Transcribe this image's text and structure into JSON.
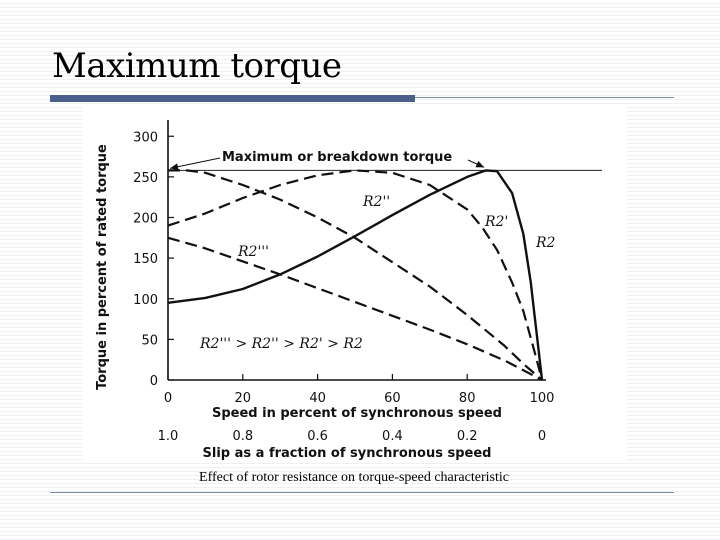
{
  "slide": {
    "title": "Maximum torque",
    "caption": "Effect of rotor resistance on torque-speed characteristic"
  },
  "chart_data": {
    "type": "line",
    "ylabel": "Torque in percent of rated torque",
    "xlabel": "Speed in percent of synchronous speed",
    "x2label": "Slip as a fraction of synchronous speed",
    "xlim": [
      0,
      100
    ],
    "ylim": [
      0,
      320
    ],
    "x_ticks": [
      "0",
      "20",
      "40",
      "60",
      "80",
      "100"
    ],
    "x2_ticks": [
      "1.0",
      "0.8",
      "0.6",
      "0.4",
      "0.2",
      "0"
    ],
    "y_ticks": [
      "0",
      "50",
      "100",
      "150",
      "200",
      "250",
      "300"
    ],
    "grid": false,
    "reference_line": {
      "y": 258
    },
    "annotation": "Maximum or breakdown torque",
    "inequality": "R2''' > R2'' > R2' > R2",
    "series": [
      {
        "name": "R2",
        "style": "solid",
        "x": [
          0,
          10,
          20,
          30,
          40,
          50,
          60,
          70,
          80,
          85,
          88,
          92,
          95,
          97,
          98,
          99,
          100
        ],
        "y": [
          95,
          101,
          112,
          130,
          152,
          177,
          203,
          228,
          250,
          258,
          257,
          230,
          180,
          120,
          80,
          40,
          0
        ]
      },
      {
        "name": "R2'",
        "style": "dashed",
        "x": [
          0,
          10,
          20,
          30,
          40,
          50,
          60,
          70,
          80,
          84,
          88,
          92,
          95,
          98,
          100
        ],
        "y": [
          190,
          205,
          224,
          240,
          252,
          258,
          255,
          240,
          210,
          188,
          160,
          120,
          85,
          35,
          0
        ]
      },
      {
        "name": "R2''",
        "style": "dashed",
        "x": [
          0,
          5,
          10,
          20,
          30,
          40,
          50,
          60,
          70,
          80,
          90,
          95,
          100
        ],
        "y": [
          258,
          258,
          255,
          240,
          222,
          200,
          175,
          145,
          115,
          80,
          42,
          20,
          0
        ]
      },
      {
        "name": "R2'''",
        "style": "dashed",
        "x": [
          0,
          10,
          20,
          30,
          40,
          50,
          60,
          70,
          80,
          90,
          100
        ],
        "y": [
          175,
          162,
          146,
          130,
          113,
          96,
          79,
          62,
          44,
          24,
          0
        ]
      }
    ]
  }
}
